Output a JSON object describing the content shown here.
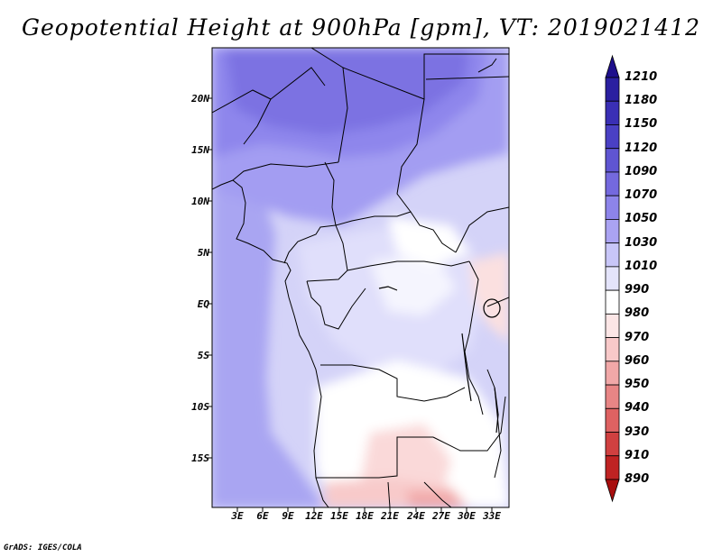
{
  "title": "Geopotential Height at 900hPa [gpm], VT: 2019021412",
  "credit": "GrADS: IGES/COLA",
  "latitude_labels": [
    "20N",
    "15N",
    "10N",
    "5N",
    "EQ",
    "5S",
    "10S",
    "15S"
  ],
  "longitude_labels": [
    "3E",
    "6E",
    "9E",
    "12E",
    "15E",
    "18E",
    "21E",
    "24E",
    "27E",
    "30E",
    "33E"
  ],
  "colorbar": {
    "levels": [
      "1210",
      "1180",
      "1150",
      "1120",
      "1090",
      "1070",
      "1050",
      "1030",
      "1010",
      "990",
      "980",
      "970",
      "960",
      "950",
      "940",
      "930",
      "910",
      "890"
    ],
    "colors": [
      "#1e0f8c",
      "#2a1fa0",
      "#3a2fb5",
      "#4a40c4",
      "#5f55d2",
      "#7469de",
      "#8d84ea",
      "#aaa3f2",
      "#c8c6f8",
      "#e4e4fb",
      "#ffffff",
      "#fce6e6",
      "#f8c9c9",
      "#f1a8a8",
      "#e88585",
      "#de6262",
      "#d04040",
      "#bf2323",
      "#a80e0e"
    ]
  },
  "map": {
    "region": "Central Africa",
    "field": "Geopotential Height at 900hPa",
    "units": "gpm"
  }
}
